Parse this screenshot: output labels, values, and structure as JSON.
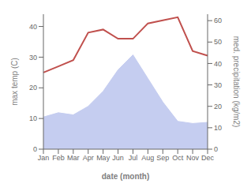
{
  "chart_data": {
    "type": "line",
    "categories": [
      "Jan",
      "Feb",
      "Mar",
      "Apr",
      "May",
      "Jun",
      "Jul",
      "Aug",
      "Sep",
      "Oct",
      "Nov",
      "Dec"
    ],
    "series": [
      {
        "type": "area",
        "axis": "y2",
        "color": "#c5cdf0",
        "values": [
          15,
          17,
          16,
          20,
          27,
          37,
          44,
          33,
          22,
          13,
          12,
          12.5
        ]
      },
      {
        "type": "line",
        "color": "#c0504d",
        "values": [
          25,
          27,
          29,
          38,
          39,
          36,
          36,
          41,
          42,
          43,
          32,
          30.5
        ]
      }
    ],
    "xlabel": "date (month)",
    "ylabel": "max temp (C)",
    "y2label": "med. precipitation (kg/m2)",
    "ylim": [
      0,
      44
    ],
    "yticks": [
      0,
      10,
      20,
      30,
      40
    ],
    "y2lim": [
      0,
      63
    ],
    "y2ticks": [
      0,
      10,
      20,
      30,
      40,
      50,
      60
    ],
    "grid": false
  }
}
